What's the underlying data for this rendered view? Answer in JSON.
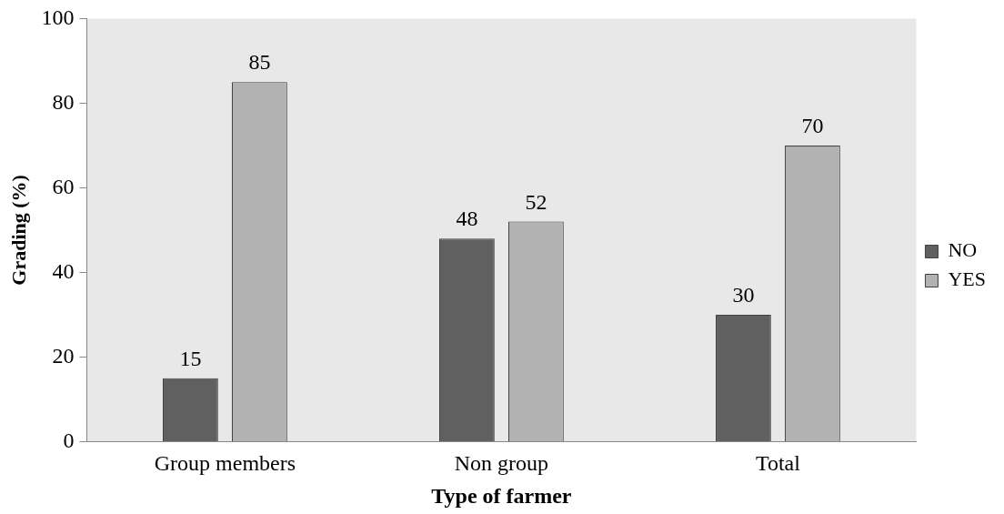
{
  "chart_data": {
    "type": "bar",
    "xlabel": "Type of farmer",
    "ylabel": "Grading (%)",
    "categories": [
      "Group members",
      "Non group",
      "Total"
    ],
    "series": [
      {
        "name": "NO",
        "color": "#606060",
        "values": [
          15,
          48,
          30
        ]
      },
      {
        "name": "YES",
        "color": "#b2b2b2",
        "values": [
          85,
          52,
          70
        ]
      }
    ],
    "ylim": [
      0,
      100
    ],
    "yticks": [
      0,
      20,
      40,
      60,
      80,
      100
    ],
    "grid": false,
    "legend": "right",
    "data_labels": true
  }
}
